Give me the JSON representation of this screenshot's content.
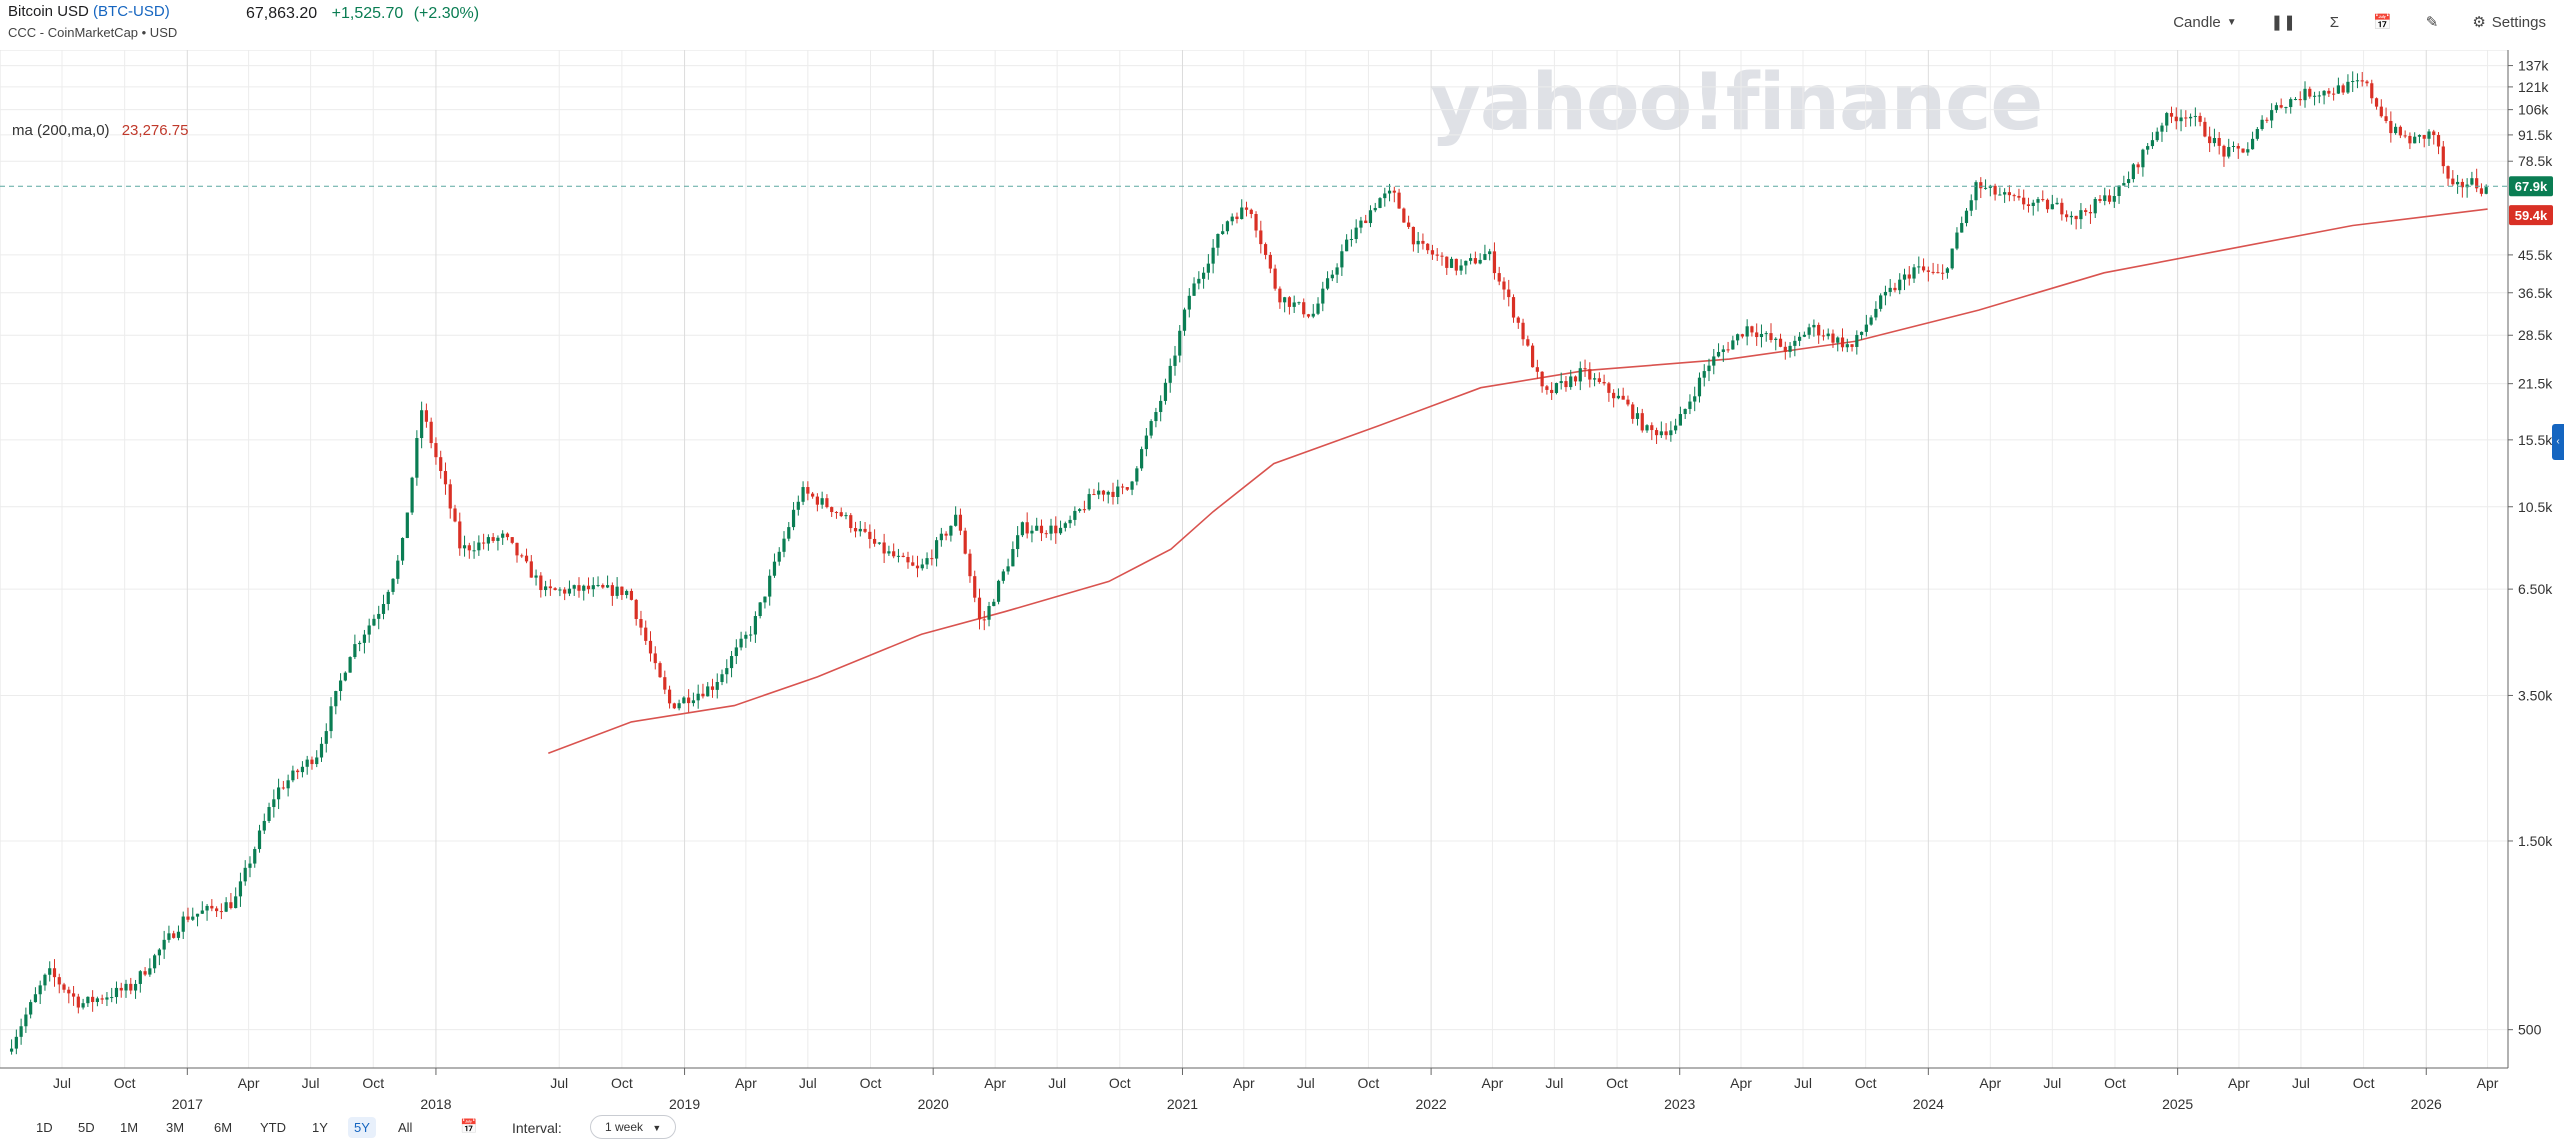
{
  "header": {
    "name": "Bitcoin USD",
    "ticker": "BTC-USD",
    "source": "CCC - CoinMarketCap • USD",
    "price": "67,863.20",
    "change": "+1,525.70",
    "change_pct": "(+2.30%)"
  },
  "toolbar": {
    "chart_type": "Candle",
    "settings_label": "Settings",
    "icons": [
      "compare-icon",
      "indicators-sigma-icon",
      "events-calendar-icon",
      "draw-pencil-icon",
      "gear-icon"
    ]
  },
  "legend": {
    "ma_label": "ma (200,ma,0)",
    "ma_value": "23,276.75"
  },
  "watermark": "yahoo!finance",
  "footer": {
    "ranges": [
      "1D",
      "5D",
      "1M",
      "3M",
      "6M",
      "YTD",
      "1Y",
      "5Y",
      "All"
    ],
    "active_range": "5Y",
    "interval_label": "Interval:",
    "interval_value": "1 week"
  },
  "colors": {
    "up": "#0a7d53",
    "down": "#d93025",
    "ma": "#d9534f",
    "grid": "#ececec",
    "accent": "#1565c0"
  },
  "chart_data": {
    "type": "candlestick",
    "y_scale": "log",
    "ylim": [
      400,
      150000
    ],
    "xlim": [
      "2016-04-01",
      "2026-05-01"
    ],
    "y_ticks": [
      {
        "value": 137000,
        "label": "137k"
      },
      {
        "value": 121000,
        "label": "121k"
      },
      {
        "value": 106000,
        "label": "106k"
      },
      {
        "value": 91500,
        "label": "91.5k"
      },
      {
        "value": 78500,
        "label": "78.5k"
      },
      {
        "value": 45500,
        "label": "45.5k"
      },
      {
        "value": 36500,
        "label": "36.5k"
      },
      {
        "value": 28500,
        "label": "28.5k"
      },
      {
        "value": 21500,
        "label": "21.5k"
      },
      {
        "value": 15500,
        "label": "15.5k"
      },
      {
        "value": 10500,
        "label": "10.5k"
      },
      {
        "value": 6500,
        "label": "6.50k"
      },
      {
        "value": 3500,
        "label": "3.50k"
      },
      {
        "value": 1500,
        "label": "1.50k"
      },
      {
        "value": 500,
        "label": "500"
      }
    ],
    "price_markers": [
      {
        "value": 67863,
        "label": "67.9k",
        "color": "#0a7d53"
      },
      {
        "value": 59400,
        "label": "59.4k",
        "color": "#d93025"
      }
    ],
    "x_month_ticks": [
      {
        "date": "2016-07-01",
        "label": "Jul"
      },
      {
        "date": "2016-10-01",
        "label": "Oct"
      },
      {
        "date": "2017-04-01",
        "label": "Apr"
      },
      {
        "date": "2017-07-01",
        "label": "Jul"
      },
      {
        "date": "2017-10-01",
        "label": "Oct"
      },
      {
        "date": "2018-07-01",
        "label": "Jul"
      },
      {
        "date": "2018-10-01",
        "label": "Oct"
      },
      {
        "date": "2019-04-01",
        "label": "Apr"
      },
      {
        "date": "2019-07-01",
        "label": "Jul"
      },
      {
        "date": "2019-10-01",
        "label": "Oct"
      },
      {
        "date": "2020-04-01",
        "label": "Apr"
      },
      {
        "date": "2020-07-01",
        "label": "Jul"
      },
      {
        "date": "2020-10-01",
        "label": "Oct"
      },
      {
        "date": "2021-04-01",
        "label": "Apr"
      },
      {
        "date": "2021-07-01",
        "label": "Jul"
      },
      {
        "date": "2021-10-01",
        "label": "Oct"
      },
      {
        "date": "2022-04-01",
        "label": "Apr"
      },
      {
        "date": "2022-07-01",
        "label": "Jul"
      },
      {
        "date": "2022-10-01",
        "label": "Oct"
      },
      {
        "date": "2023-04-01",
        "label": "Apr"
      },
      {
        "date": "2023-07-01",
        "label": "Jul"
      },
      {
        "date": "2023-10-01",
        "label": "Oct"
      },
      {
        "date": "2024-04-01",
        "label": "Apr"
      },
      {
        "date": "2024-07-01",
        "label": "Jul"
      },
      {
        "date": "2024-10-01",
        "label": "Oct"
      },
      {
        "date": "2025-04-01",
        "label": "Apr"
      },
      {
        "date": "2025-07-01",
        "label": "Jul"
      },
      {
        "date": "2025-10-01",
        "label": "Oct"
      },
      {
        "date": "2026-04-01",
        "label": "Apr"
      }
    ],
    "x_year_ticks": [
      {
        "date": "2017-01-01",
        "label": "2017"
      },
      {
        "date": "2018-01-01",
        "label": "2018"
      },
      {
        "date": "2019-01-01",
        "label": "2019"
      },
      {
        "date": "2020-01-01",
        "label": "2020"
      },
      {
        "date": "2021-01-01",
        "label": "2021"
      },
      {
        "date": "2022-01-01",
        "label": "2022"
      },
      {
        "date": "2023-01-01",
        "label": "2023"
      },
      {
        "date": "2024-01-01",
        "label": "2024"
      },
      {
        "date": "2025-01-01",
        "label": "2025"
      },
      {
        "date": "2026-01-01",
        "label": "2026"
      }
    ],
    "price_path": [
      [
        "2016-04-15",
        440
      ],
      [
        "2016-06-15",
        700
      ],
      [
        "2016-08-01",
        580
      ],
      [
        "2016-10-15",
        640
      ],
      [
        "2017-01-01",
        960
      ],
      [
        "2017-03-15",
        1050
      ],
      [
        "2017-05-15",
        2000
      ],
      [
        "2017-07-15",
        2500
      ],
      [
        "2017-09-01",
        4500
      ],
      [
        "2017-10-15",
        5800
      ],
      [
        "2017-11-15",
        8000
      ],
      [
        "2017-12-15",
        18500
      ],
      [
        "2018-01-20",
        11500
      ],
      [
        "2018-02-10",
        8200
      ],
      [
        "2018-03-15",
        8500
      ],
      [
        "2018-04-15",
        8800
      ],
      [
        "2018-06-15",
        6400
      ],
      [
        "2018-08-15",
        6500
      ],
      [
        "2018-10-15",
        6400
      ],
      [
        "2018-11-25",
        4000
      ],
      [
        "2018-12-15",
        3300
      ],
      [
        "2019-02-15",
        3700
      ],
      [
        "2019-04-15",
        5200
      ],
      [
        "2019-06-25",
        11500
      ],
      [
        "2019-08-15",
        10300
      ],
      [
        "2019-10-15",
        8300
      ],
      [
        "2019-12-15",
        7200
      ],
      [
        "2020-02-10",
        10000
      ],
      [
        "2020-03-15",
        5200
      ],
      [
        "2020-05-15",
        9300
      ],
      [
        "2020-07-15",
        9200
      ],
      [
        "2020-09-01",
        11500
      ],
      [
        "2020-10-15",
        11500
      ],
      [
        "2020-12-15",
        22000
      ],
      [
        "2021-01-15",
        36000
      ],
      [
        "2021-03-15",
        57000
      ],
      [
        "2021-04-15",
        60000
      ],
      [
        "2021-05-25",
        36000
      ],
      [
        "2021-07-15",
        32000
      ],
      [
        "2021-09-01",
        48000
      ],
      [
        "2021-10-20",
        63000
      ],
      [
        "2021-11-10",
        65000
      ],
      [
        "2021-12-15",
        48000
      ],
      [
        "2022-02-15",
        42000
      ],
      [
        "2022-03-30",
        46000
      ],
      [
        "2022-05-15",
        30000
      ],
      [
        "2022-06-20",
        20000
      ],
      [
        "2022-08-15",
        23000
      ],
      [
        "2022-10-15",
        19300
      ],
      [
        "2022-11-20",
        16200
      ],
      [
        "2022-12-30",
        16600
      ],
      [
        "2023-02-15",
        24000
      ],
      [
        "2023-04-15",
        30000
      ],
      [
        "2023-06-15",
        26000
      ],
      [
        "2023-07-15",
        30000
      ],
      [
        "2023-09-15",
        26500
      ],
      [
        "2023-10-25",
        34500
      ],
      [
        "2023-12-15",
        42000
      ],
      [
        "2024-01-25",
        40000
      ],
      [
        "2024-03-15",
        68000
      ],
      [
        "2024-05-15",
        62000
      ],
      [
        "2024-07-15",
        60000
      ],
      [
        "2024-08-10",
        57000
      ],
      [
        "2024-10-15",
        67000
      ],
      [
        "2024-12-15",
        100000
      ],
      [
        "2025-01-20",
        104000
      ],
      [
        "2025-03-15",
        82000
      ],
      [
        "2025-04-20",
        85000
      ],
      [
        "2025-05-20",
        106000
      ],
      [
        "2025-07-15",
        117000
      ],
      [
        "2025-08-15",
        118000
      ],
      [
        "2025-10-06",
        124000
      ],
      [
        "2025-11-15",
        94000
      ],
      [
        "2025-12-15",
        88000
      ],
      [
        "2026-01-15",
        93000
      ],
      [
        "2026-02-10",
        66000
      ],
      [
        "2026-03-10",
        70000
      ],
      [
        "2026-04-01",
        66500
      ]
    ],
    "ma_path": [
      [
        "2018-06-15",
        2500
      ],
      [
        "2018-10-15",
        3000
      ],
      [
        "2019-03-15",
        3300
      ],
      [
        "2019-07-15",
        3900
      ],
      [
        "2019-12-15",
        5000
      ],
      [
        "2020-04-15",
        5700
      ],
      [
        "2020-09-15",
        6800
      ],
      [
        "2020-12-15",
        8200
      ],
      [
        "2021-02-15",
        10200
      ],
      [
        "2021-05-15",
        13500
      ],
      [
        "2021-10-15",
        16800
      ],
      [
        "2022-03-15",
        21000
      ],
      [
        "2022-08-15",
        23200
      ],
      [
        "2023-03-15",
        24800
      ],
      [
        "2023-09-15",
        27500
      ],
      [
        "2024-03-15",
        33000
      ],
      [
        "2024-09-15",
        41000
      ],
      [
        "2025-03-15",
        47000
      ],
      [
        "2025-09-15",
        54000
      ],
      [
        "2026-04-01",
        59400
      ]
    ]
  }
}
